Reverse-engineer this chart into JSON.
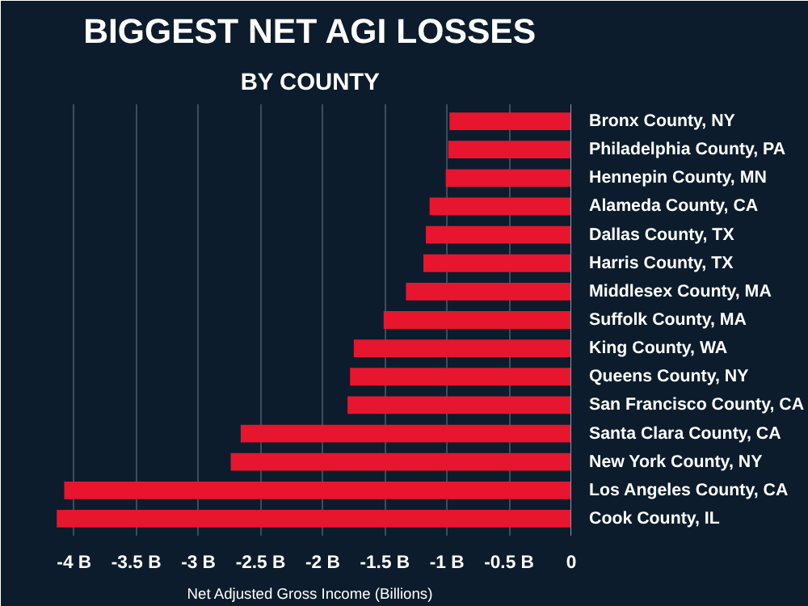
{
  "chart_data": {
    "type": "bar",
    "orientation": "horizontal",
    "title": "BIGGEST NET AGI LOSSES",
    "subtitle": "BY COUNTY",
    "xlabel": "Net Adjusted Gross Income (Billions)",
    "categories": [
      "Bronx County, NY",
      "Philadelphia County, PA",
      "Hennepin County, MN",
      "Alameda County, CA",
      "Dallas County, TX",
      "Harris County, TX",
      "Middlesex County, MA",
      "Suffolk County, MA",
      "King County, WA",
      "Queens County, NY",
      "San Francisco County, CA",
      "Santa Clara County, CA",
      "New York County, NY",
      "Los Angeles County, CA",
      "Cook County, IL"
    ],
    "values": [
      -0.98,
      -0.99,
      -1.01,
      -1.14,
      -1.17,
      -1.19,
      -1.33,
      -1.51,
      -1.75,
      -1.78,
      -1.8,
      -2.66,
      -2.74,
      -4.08,
      -4.14
    ],
    "color": "#e8152f",
    "xlim": [
      -4.2,
      0
    ],
    "xticks": [
      {
        "value": -4,
        "label": "-4 B"
      },
      {
        "value": -3.5,
        "label": "-3.5 B"
      },
      {
        "value": -3,
        "label": "-3 B"
      },
      {
        "value": -2.5,
        "label": "-2.5 B"
      },
      {
        "value": -2,
        "label": "-2 B"
      },
      {
        "value": -1.5,
        "label": "-1.5 B"
      },
      {
        "value": -1,
        "label": "-1 B"
      },
      {
        "value": -0.5,
        "label": "-0.5 B"
      },
      {
        "value": 0,
        "label": "0"
      }
    ],
    "grid": "x"
  }
}
